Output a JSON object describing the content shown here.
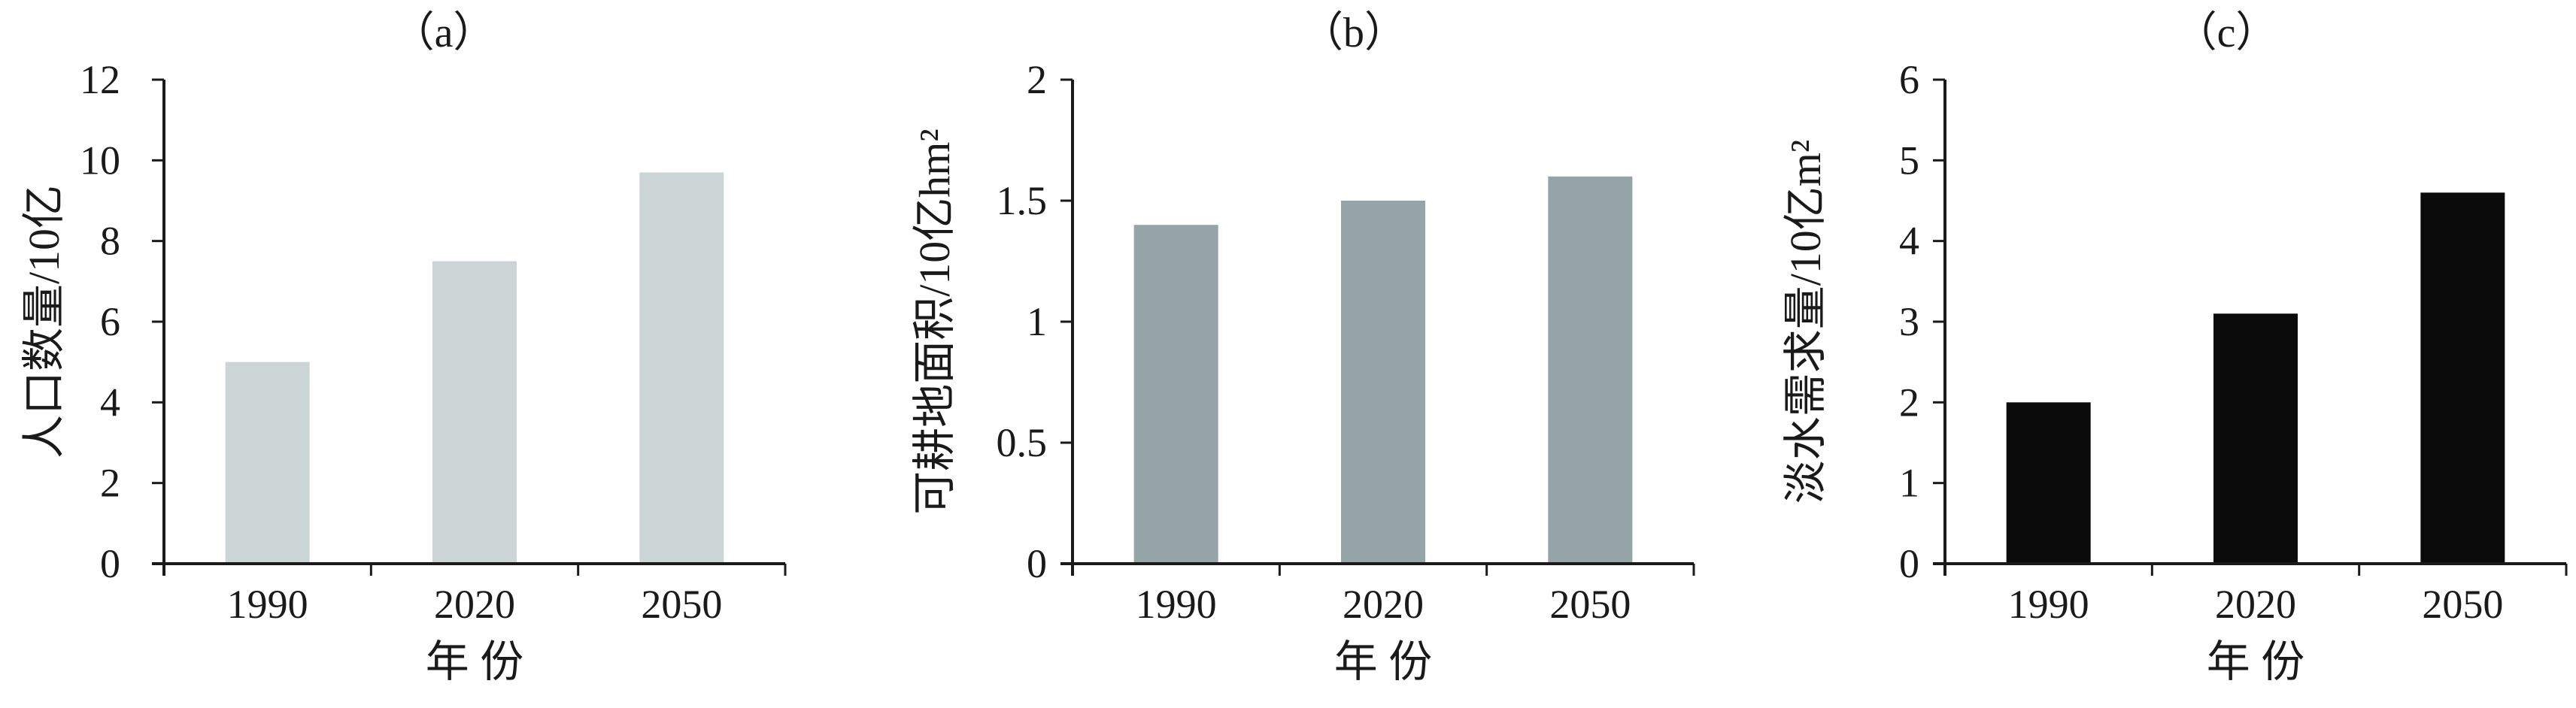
{
  "chart_data": [
    {
      "type": "bar",
      "title": "（a）",
      "xlabel": "年 份",
      "ylabel": "人口数量/10亿",
      "categories": [
        "1990",
        "2020",
        "2050"
      ],
      "values": [
        5.0,
        7.5,
        9.7
      ],
      "ylim": [
        0,
        12
      ],
      "yticks": [
        "0",
        "2",
        "4",
        "6",
        "8",
        "10",
        "12"
      ],
      "ytick_values": [
        0,
        2,
        4,
        6,
        8,
        10,
        12
      ],
      "color": "#cbd5d5",
      "grid": false,
      "legend": "none"
    },
    {
      "type": "bar",
      "title": "（b）",
      "xlabel": "年 份",
      "ylabel": "可耕地面积/10亿hm²",
      "categories": [
        "1990",
        "2020",
        "2050"
      ],
      "values": [
        1.4,
        1.5,
        1.6
      ],
      "ylim": [
        0,
        2
      ],
      "yticks": [
        "0",
        "0.5",
        "1",
        "1.5",
        "2"
      ],
      "ytick_values": [
        0,
        0.5,
        1,
        1.5,
        2
      ],
      "color": "#95a4a6",
      "grid": false,
      "legend": "none"
    },
    {
      "type": "bar",
      "title": "（c）",
      "xlabel": "年 份",
      "ylabel": "淡水需求量/10亿m²",
      "categories": [
        "1990",
        "2020",
        "2050"
      ],
      "values": [
        2.0,
        3.1,
        4.6
      ],
      "ylim": [
        0,
        6
      ],
      "yticks": [
        "0",
        "1",
        "2",
        "3",
        "4",
        "5",
        "6"
      ],
      "ytick_values": [
        0,
        1,
        2,
        3,
        4,
        5,
        6
      ],
      "color": "#0b0b0b",
      "grid": false,
      "legend": "none"
    }
  ]
}
